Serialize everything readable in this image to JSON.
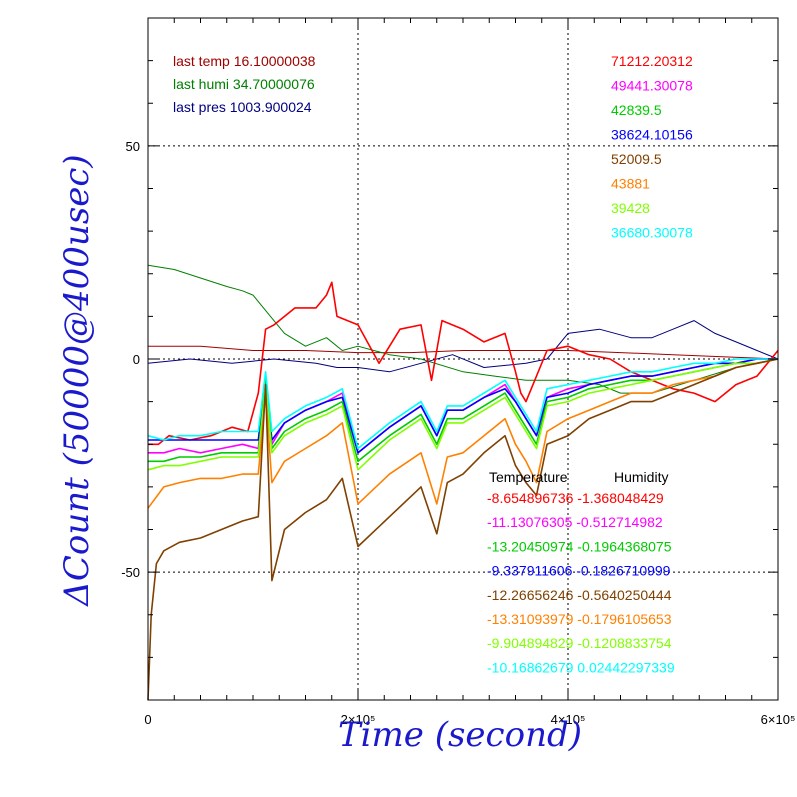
{
  "chart_data": {
    "type": "line",
    "xlabel": "Time (second)",
    "ylabel": "ΔCount (50000@400usec)",
    "xlim": [
      0,
      600000
    ],
    "ylim": [
      -80,
      80
    ],
    "x_ticks": [
      {
        "value": 0,
        "label": "0"
      },
      {
        "value": 200000,
        "label": "2×10⁵"
      },
      {
        "value": 400000,
        "label": "4×10⁵"
      },
      {
        "value": 600000,
        "label": "6×10⁵"
      }
    ],
    "y_ticks": [
      {
        "value": -50,
        "label": "-50"
      },
      {
        "value": 0,
        "label": "0"
      },
      {
        "value": 50,
        "label": "50"
      }
    ],
    "grid": true,
    "last_values": [
      {
        "label": "last temp",
        "value": "16.10000038",
        "color": "#a00000"
      },
      {
        "label": "last humi",
        "value": "34.70000076",
        "color": "#008000"
      },
      {
        "label": "last pres",
        "value": "1003.900024",
        "color": "#000080"
      }
    ],
    "channel_values": [
      {
        "value": "71212.20312",
        "color": "#ff0000"
      },
      {
        "value": "49441.30078",
        "color": "#ff00ff"
      },
      {
        "value": "42839.5",
        "color": "#00cc00"
      },
      {
        "value": "38624.10156",
        "color": "#0000ff"
      },
      {
        "value": "52009.5",
        "color": "#804000"
      },
      {
        "value": "43881",
        "color": "#ff8000"
      },
      {
        "value": "39428",
        "color": "#80ff00"
      },
      {
        "value": "36680.30078",
        "color": "#00ffff"
      }
    ],
    "coef_headers": {
      "temperature": "Temperature",
      "humidity": "Humidity"
    },
    "coefficients": [
      {
        "temperature": "-8.654896736",
        "humidity": "-1.368048429",
        "color": "#ff0000"
      },
      {
        "temperature": "-11.13076305",
        "humidity": "-0.512714982",
        "color": "#ff00ff"
      },
      {
        "temperature": "-13.20450974",
        "humidity": "-0.1964368075",
        "color": "#00cc00"
      },
      {
        "temperature": "-9.337911606",
        "humidity": "-0.1826710999",
        "color": "#0000ff"
      },
      {
        "temperature": "-12.26656246",
        "humidity": "-0.5640250444",
        "color": "#804000"
      },
      {
        "temperature": "-13.31093979",
        "humidity": "-0.1796105653",
        "color": "#ff8000"
      },
      {
        "temperature": "-9.904894829",
        "humidity": "-0.1208833754",
        "color": "#80ff00"
      },
      {
        "temperature": "-10.16862679",
        "humidity": "0.02442297339",
        "color": "#00ffff"
      }
    ],
    "series": [
      {
        "color": "#a00000",
        "x": [
          0,
          50000,
          100000,
          150000,
          200000,
          250000,
          300000,
          350000,
          400000,
          450000,
          500000,
          550000,
          600000
        ],
        "y": [
          3,
          3,
          2,
          2,
          1.5,
          1.5,
          2,
          2,
          2,
          1.5,
          1,
          0.5,
          0
        ]
      },
      {
        "color": "#008000",
        "x": [
          0,
          25000,
          50000,
          75000,
          90000,
          100000,
          110000,
          130000,
          150000,
          170000,
          185000,
          200000,
          230000,
          260000,
          300000,
          330000,
          360000,
          400000,
          430000,
          450000,
          480000,
          520000,
          560000,
          600000
        ],
        "y": [
          22,
          21,
          19,
          17,
          16,
          15,
          12,
          6,
          3,
          5,
          2,
          3,
          1,
          0,
          -3,
          -4,
          -5,
          -5,
          -6,
          -8,
          -8,
          -5,
          -2,
          0
        ]
      },
      {
        "color": "#000080",
        "x": [
          0,
          40000,
          80000,
          120000,
          160000,
          180000,
          200000,
          230000,
          260000,
          290000,
          320000,
          360000,
          380000,
          400000,
          430000,
          460000,
          480000,
          500000,
          520000,
          540000,
          560000,
          580000,
          600000
        ],
        "y": [
          -1,
          0,
          -1,
          0,
          -1,
          -2,
          -2,
          -3,
          -1,
          1,
          -2,
          -1,
          0,
          6,
          7,
          5,
          5,
          7,
          9,
          6,
          4,
          2,
          0
        ]
      },
      {
        "color": "#ff0000",
        "x": [
          0,
          10000,
          20000,
          40000,
          60000,
          80000,
          95000,
          105000,
          112000,
          120000,
          140000,
          160000,
          170000,
          175000,
          180000,
          200000,
          220000,
          240000,
          260000,
          270000,
          280000,
          300000,
          320000,
          340000,
          350000,
          355000,
          360000,
          380000,
          400000,
          420000,
          440000,
          460000,
          480000,
          500000,
          520000,
          540000,
          560000,
          580000,
          600000
        ],
        "y": [
          -20,
          -20,
          -18,
          -19,
          -18,
          -16,
          -17,
          -8,
          7,
          8,
          12,
          12,
          15,
          18,
          10,
          8,
          -1,
          7,
          8,
          -5,
          9,
          7,
          4,
          6,
          -3,
          -8,
          -10,
          2,
          3,
          1,
          0,
          -3,
          -5,
          -7,
          -8,
          -10,
          -6,
          -4,
          2
        ]
      },
      {
        "color": "#ff00ff",
        "x": [
          0,
          15000,
          30000,
          50000,
          70000,
          90000,
          105000,
          112000,
          118000,
          130000,
          150000,
          170000,
          185000,
          200000,
          230000,
          260000,
          275000,
          285000,
          300000,
          320000,
          340000,
          350000,
          360000,
          370000,
          380000,
          400000,
          420000,
          440000,
          460000,
          480000,
          500000,
          520000,
          540000,
          560000,
          580000,
          600000
        ],
        "y": [
          -22,
          -22,
          -21,
          -22,
          -21,
          -20,
          -21,
          -4,
          -20,
          -15,
          -12,
          -10,
          -8,
          -22,
          -16,
          -11,
          -18,
          -12,
          -12,
          -9,
          -6,
          -10,
          -14,
          -18,
          -9,
          -7,
          -6,
          -5,
          -4,
          -4,
          -3,
          -2,
          -1,
          -1,
          0,
          0
        ]
      },
      {
        "color": "#0000ff",
        "x": [
          0,
          15000,
          30000,
          50000,
          70000,
          90000,
          105000,
          112000,
          118000,
          130000,
          150000,
          170000,
          185000,
          200000,
          230000,
          260000,
          275000,
          285000,
          300000,
          320000,
          340000,
          350000,
          360000,
          370000,
          380000,
          400000,
          420000,
          440000,
          460000,
          480000,
          500000,
          520000,
          540000,
          560000,
          580000,
          600000
        ],
        "y": [
          -19,
          -19,
          -19,
          -19,
          -19,
          -19,
          -19,
          -4,
          -19,
          -15,
          -12,
          -10,
          -9,
          -22,
          -16,
          -11,
          -18,
          -12,
          -12,
          -9,
          -7,
          -10,
          -14,
          -18,
          -9,
          -8,
          -6,
          -5,
          -4,
          -4,
          -3,
          -2,
          -1,
          -1,
          0,
          0
        ]
      },
      {
        "color": "#00cc00",
        "x": [
          0,
          15000,
          30000,
          50000,
          70000,
          90000,
          105000,
          112000,
          118000,
          130000,
          150000,
          170000,
          185000,
          200000,
          230000,
          260000,
          275000,
          285000,
          300000,
          320000,
          340000,
          350000,
          360000,
          370000,
          380000,
          400000,
          420000,
          440000,
          460000,
          480000,
          500000,
          520000,
          540000,
          560000,
          580000,
          600000
        ],
        "y": [
          -24,
          -24,
          -23,
          -23,
          -22,
          -22,
          -22,
          -5,
          -21,
          -17,
          -14,
          -12,
          -10,
          -24,
          -18,
          -13,
          -20,
          -14,
          -14,
          -11,
          -8,
          -12,
          -16,
          -20,
          -10,
          -9,
          -7,
          -6,
          -5,
          -5,
          -4,
          -3,
          -2,
          -1,
          -1,
          0
        ]
      },
      {
        "color": "#80ff00",
        "x": [
          0,
          15000,
          30000,
          50000,
          70000,
          90000,
          105000,
          112000,
          118000,
          130000,
          150000,
          170000,
          185000,
          200000,
          230000,
          260000,
          275000,
          285000,
          300000,
          320000,
          340000,
          350000,
          360000,
          370000,
          380000,
          400000,
          420000,
          440000,
          460000,
          480000,
          500000,
          520000,
          540000,
          560000,
          580000,
          600000
        ],
        "y": [
          -26,
          -25,
          -25,
          -24,
          -23,
          -23,
          -23,
          -6,
          -22,
          -18,
          -15,
          -13,
          -11,
          -26,
          -19,
          -14,
          -21,
          -15,
          -15,
          -12,
          -9,
          -13,
          -17,
          -21,
          -11,
          -10,
          -8,
          -7,
          -6,
          -5,
          -4,
          -3,
          -2,
          -1,
          -1,
          0
        ]
      },
      {
        "color": "#00ffff",
        "x": [
          0,
          15000,
          30000,
          50000,
          70000,
          90000,
          105000,
          112000,
          118000,
          130000,
          150000,
          170000,
          185000,
          200000,
          230000,
          260000,
          275000,
          285000,
          300000,
          320000,
          340000,
          350000,
          360000,
          370000,
          380000,
          400000,
          420000,
          440000,
          460000,
          480000,
          500000,
          520000,
          540000,
          560000,
          580000,
          600000
        ],
        "y": [
          -18,
          -19,
          -18,
          -18,
          -17,
          -17,
          -17,
          -3,
          -17,
          -14,
          -11,
          -9,
          -7,
          -21,
          -15,
          -10,
          -17,
          -11,
          -11,
          -8,
          -5,
          -9,
          -13,
          -17,
          -7,
          -6,
          -5,
          -4,
          -3,
          -3,
          -2,
          -1,
          -1,
          0,
          0,
          0
        ]
      },
      {
        "color": "#ff8000",
        "x": [
          0,
          15000,
          30000,
          50000,
          70000,
          90000,
          105000,
          112000,
          118000,
          130000,
          150000,
          170000,
          185000,
          200000,
          230000,
          260000,
          275000,
          285000,
          300000,
          320000,
          340000,
          350000,
          360000,
          370000,
          380000,
          400000,
          420000,
          440000,
          460000,
          480000,
          500000,
          520000,
          540000,
          560000,
          580000,
          600000
        ],
        "y": [
          -35,
          -30,
          -29,
          -28,
          -28,
          -27,
          -27,
          -8,
          -29,
          -24,
          -21,
          -18,
          -15,
          -34,
          -27,
          -22,
          -34,
          -23,
          -22,
          -18,
          -14,
          -20,
          -24,
          -29,
          -17,
          -14,
          -12,
          -10,
          -8,
          -8,
          -6,
          -5,
          -4,
          -2,
          -1,
          0
        ]
      },
      {
        "color": "#804000",
        "x": [
          0,
          3000,
          8000,
          15000,
          30000,
          50000,
          70000,
          90000,
          105000,
          112000,
          118000,
          130000,
          150000,
          170000,
          185000,
          200000,
          230000,
          260000,
          275000,
          285000,
          300000,
          320000,
          340000,
          350000,
          360000,
          370000,
          380000,
          400000,
          420000,
          440000,
          460000,
          480000,
          500000,
          520000,
          540000,
          560000,
          580000,
          600000
        ],
        "y": [
          -80,
          -60,
          -48,
          -45,
          -43,
          -42,
          -40,
          -38,
          -37,
          -6,
          -52,
          -40,
          -36,
          -33,
          -28,
          -44,
          -37,
          -30,
          -41,
          -29,
          -27,
          -22,
          -18,
          -25,
          -29,
          -32,
          -20,
          -18,
          -14,
          -12,
          -10,
          -10,
          -8,
          -6,
          -4,
          -2,
          -1,
          0
        ]
      }
    ]
  }
}
